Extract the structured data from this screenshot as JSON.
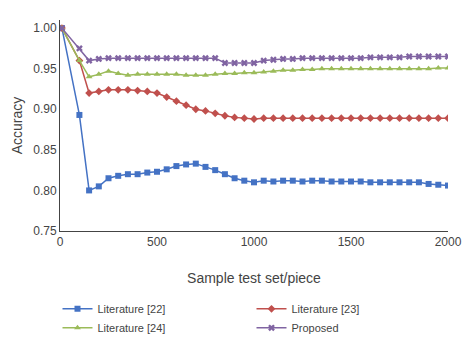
{
  "chart_data": {
    "type": "line",
    "xlabel": "Sample test set/piece",
    "ylabel": "Accuracy",
    "xlim": [
      0,
      2000
    ],
    "ylim": [
      0.75,
      1.01
    ],
    "xticks": [
      0,
      500,
      1000,
      1500,
      2000
    ],
    "yticks": [
      0.75,
      {
        "value": 0.8,
        "label": "0.80"
      },
      0.85,
      {
        "value": 0.9,
        "label": "0.90"
      },
      0.95,
      {
        "value": 1.0,
        "label": "1.00"
      }
    ],
    "grid": false,
    "legend": "bottom",
    "x": [
      10,
      100,
      150,
      200,
      250,
      300,
      350,
      400,
      450,
      500,
      550,
      600,
      650,
      700,
      750,
      800,
      850,
      900,
      950,
      1000,
      1050,
      1100,
      1150,
      1200,
      1250,
      1300,
      1350,
      1400,
      1450,
      1500,
      1550,
      1600,
      1650,
      1700,
      1750,
      1800,
      1850,
      1900,
      1950,
      2000
    ],
    "series": [
      {
        "name": "Literature [22]",
        "color": "#4472c4",
        "marker": "square",
        "values": [
          1.0,
          0.893,
          0.8,
          0.805,
          0.815,
          0.818,
          0.82,
          0.82,
          0.822,
          0.823,
          0.826,
          0.83,
          0.832,
          0.833,
          0.829,
          0.825,
          0.82,
          0.815,
          0.812,
          0.81,
          0.812,
          0.811,
          0.812,
          0.812,
          0.811,
          0.812,
          0.812,
          0.811,
          0.811,
          0.811,
          0.811,
          0.81,
          0.81,
          0.81,
          0.81,
          0.81,
          0.81,
          0.808,
          0.807,
          0.806
        ]
      },
      {
        "name": "Literature [23]",
        "color": "#c0504d",
        "marker": "diamond",
        "values": [
          1.0,
          0.96,
          0.92,
          0.922,
          0.924,
          0.924,
          0.924,
          0.923,
          0.922,
          0.92,
          0.915,
          0.91,
          0.905,
          0.9,
          0.898,
          0.895,
          0.892,
          0.89,
          0.889,
          0.888,
          0.889,
          0.889,
          0.889,
          0.889,
          0.889,
          0.889,
          0.889,
          0.889,
          0.889,
          0.889,
          0.889,
          0.889,
          0.889,
          0.889,
          0.889,
          0.889,
          0.889,
          0.889,
          0.889,
          0.889
        ]
      },
      {
        "name": "Literature [24]",
        "color": "#9bbb59",
        "marker": "triangle-up",
        "values": [
          1.0,
          0.96,
          0.94,
          0.943,
          0.947,
          0.944,
          0.942,
          0.943,
          0.943,
          0.943,
          0.943,
          0.943,
          0.942,
          0.942,
          0.942,
          0.943,
          0.944,
          0.944,
          0.945,
          0.945,
          0.946,
          0.947,
          0.948,
          0.948,
          0.949,
          0.949,
          0.95,
          0.95,
          0.95,
          0.95,
          0.95,
          0.95,
          0.95,
          0.95,
          0.95,
          0.95,
          0.95,
          0.95,
          0.951,
          0.951
        ]
      },
      {
        "name": "Proposed",
        "color": "#8064a2",
        "marker": "x",
        "values": [
          1.0,
          0.975,
          0.96,
          0.962,
          0.963,
          0.963,
          0.963,
          0.963,
          0.963,
          0.963,
          0.963,
          0.963,
          0.963,
          0.963,
          0.963,
          0.963,
          0.957,
          0.957,
          0.957,
          0.957,
          0.96,
          0.961,
          0.962,
          0.962,
          0.963,
          0.963,
          0.963,
          0.963,
          0.963,
          0.963,
          0.963,
          0.964,
          0.964,
          0.964,
          0.964,
          0.965,
          0.965,
          0.965,
          0.965,
          0.965
        ]
      }
    ]
  }
}
